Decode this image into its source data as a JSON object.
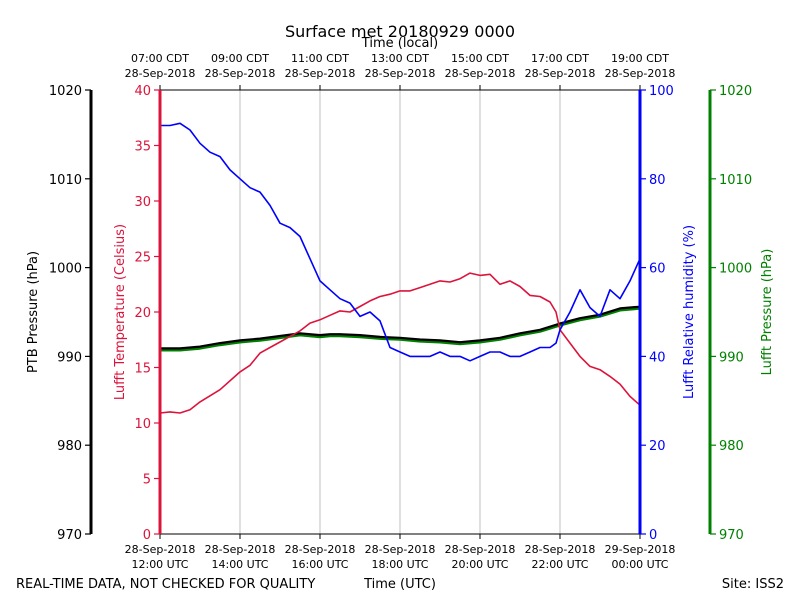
{
  "chart_data": {
    "type": "line",
    "title": "Surface met 20180929 0000",
    "top_axis_title": "Time (local)",
    "x_label": "Time (UTC)",
    "footer_left": "REAL-TIME DATA, NOT CHECKED FOR QUALITY",
    "footer_right": "Site: ISS2",
    "x_range_hours": [
      12,
      24
    ],
    "x_tick_hours": [
      12,
      14,
      16,
      18,
      20,
      22,
      24
    ],
    "bottom_ticks": [
      {
        "date": "28-Sep-2018",
        "time": "12:00 UTC"
      },
      {
        "date": "28-Sep-2018",
        "time": "14:00 UTC"
      },
      {
        "date": "28-Sep-2018",
        "time": "16:00 UTC"
      },
      {
        "date": "28-Sep-2018",
        "time": "18:00 UTC"
      },
      {
        "date": "28-Sep-2018",
        "time": "20:00 UTC"
      },
      {
        "date": "28-Sep-2018",
        "time": "22:00 UTC"
      },
      {
        "date": "29-Sep-2018",
        "time": "00:00 UTC"
      }
    ],
    "top_ticks": [
      {
        "time": "07:00 CDT",
        "date": "28-Sep-2018"
      },
      {
        "time": "09:00 CDT",
        "date": "28-Sep-2018"
      },
      {
        "time": "11:00 CDT",
        "date": "28-Sep-2018"
      },
      {
        "time": "13:00 CDT",
        "date": "28-Sep-2018"
      },
      {
        "time": "15:00 CDT",
        "date": "28-Sep-2018"
      },
      {
        "time": "17:00 CDT",
        "date": "28-Sep-2018"
      },
      {
        "time": "19:00 CDT",
        "date": "28-Sep-2018"
      }
    ],
    "axes": {
      "ptb": {
        "label": "PTB Pressure (hPa)",
        "range": [
          970,
          1020
        ],
        "ticks": [
          970,
          980,
          990,
          1000,
          1010,
          1020
        ],
        "color": "#000000"
      },
      "temp": {
        "label": "Lufft Temperature (Celsius)",
        "range": [
          0,
          40
        ],
        "ticks": [
          0,
          5,
          10,
          15,
          20,
          25,
          30,
          35,
          40
        ],
        "color": "#dc143c"
      },
      "rh": {
        "label": "Lufft Relative humidity (%)",
        "range": [
          0,
          100
        ],
        "ticks": [
          0,
          20,
          40,
          60,
          80,
          100
        ],
        "color": "#0000ff"
      },
      "lufft_p": {
        "label": "Lufft Pressure (hPa)",
        "range": [
          970,
          1020
        ],
        "ticks": [
          970,
          980,
          990,
          1000,
          1010,
          1020
        ],
        "color": "#008000"
      }
    },
    "series": [
      {
        "name": "Lufft Pressure (hPa)",
        "axis": "lufft_p",
        "color": "#008000",
        "points": [
          [
            12,
            990.7
          ],
          [
            12.5,
            990.7
          ],
          [
            13,
            990.9
          ],
          [
            13.5,
            991.3
          ],
          [
            14,
            991.6
          ],
          [
            14.5,
            991.8
          ],
          [
            15,
            992.1
          ],
          [
            15.5,
            992.4
          ],
          [
            16,
            992.2
          ],
          [
            16.25,
            992.3
          ],
          [
            16.5,
            992.3
          ],
          [
            17,
            992.2
          ],
          [
            17.5,
            992.0
          ],
          [
            18,
            991.9
          ],
          [
            18.5,
            991.7
          ],
          [
            19,
            991.6
          ],
          [
            19.5,
            991.4
          ],
          [
            20,
            991.6
          ],
          [
            20.5,
            991.9
          ],
          [
            21,
            992.4
          ],
          [
            21.5,
            992.8
          ],
          [
            22,
            993.5
          ],
          [
            22.5,
            994.1
          ],
          [
            23,
            994.5
          ],
          [
            23.5,
            995.2
          ],
          [
            24,
            995.4
          ]
        ]
      },
      {
        "name": "PTB Pressure (hPa)",
        "axis": "ptb",
        "color": "#000000",
        "points": [
          [
            12,
            990.9
          ],
          [
            12.5,
            990.9
          ],
          [
            13,
            991.1
          ],
          [
            13.5,
            991.5
          ],
          [
            14,
            991.8
          ],
          [
            14.5,
            992.0
          ],
          [
            15,
            992.3
          ],
          [
            15.5,
            992.6
          ],
          [
            16,
            992.4
          ],
          [
            16.25,
            992.5
          ],
          [
            16.5,
            992.5
          ],
          [
            17,
            992.4
          ],
          [
            17.5,
            992.2
          ],
          [
            18,
            992.1
          ],
          [
            18.5,
            991.9
          ],
          [
            19,
            991.8
          ],
          [
            19.5,
            991.6
          ],
          [
            20,
            991.8
          ],
          [
            20.5,
            992.1
          ],
          [
            21,
            992.6
          ],
          [
            21.5,
            993.0
          ],
          [
            22,
            993.7
          ],
          [
            22.5,
            994.3
          ],
          [
            23,
            994.7
          ],
          [
            23.5,
            995.4
          ],
          [
            24,
            995.6
          ]
        ]
      },
      {
        "name": "Lufft Temperature (Celsius)",
        "axis": "temp",
        "color": "#dc143c",
        "points": [
          [
            12,
            10.9
          ],
          [
            12.25,
            11.0
          ],
          [
            12.5,
            10.9
          ],
          [
            12.75,
            11.2
          ],
          [
            13,
            11.9
          ],
          [
            13.5,
            13.0
          ],
          [
            14,
            14.6
          ],
          [
            14.25,
            15.2
          ],
          [
            14.5,
            16.3
          ],
          [
            14.75,
            16.8
          ],
          [
            15,
            17.3
          ],
          [
            15.25,
            17.8
          ],
          [
            15.5,
            18.3
          ],
          [
            15.75,
            19.0
          ],
          [
            16,
            19.3
          ],
          [
            16.25,
            19.7
          ],
          [
            16.5,
            20.1
          ],
          [
            16.75,
            20.0
          ],
          [
            17,
            20.5
          ],
          [
            17.25,
            21.0
          ],
          [
            17.5,
            21.4
          ],
          [
            17.75,
            21.6
          ],
          [
            18,
            21.9
          ],
          [
            18.25,
            21.9
          ],
          [
            18.5,
            22.2
          ],
          [
            18.75,
            22.5
          ],
          [
            19,
            22.8
          ],
          [
            19.25,
            22.7
          ],
          [
            19.5,
            23.0
          ],
          [
            19.75,
            23.5
          ],
          [
            20,
            23.3
          ],
          [
            20.25,
            23.4
          ],
          [
            20.5,
            22.5
          ],
          [
            20.75,
            22.8
          ],
          [
            21,
            22.3
          ],
          [
            21.25,
            21.5
          ],
          [
            21.5,
            21.4
          ],
          [
            21.75,
            20.9
          ],
          [
            21.9,
            20.0
          ],
          [
            22,
            18.4
          ],
          [
            22.25,
            17.2
          ],
          [
            22.5,
            16.0
          ],
          [
            22.75,
            15.1
          ],
          [
            23,
            14.8
          ],
          [
            23.25,
            14.2
          ],
          [
            23.5,
            13.5
          ],
          [
            23.75,
            12.4
          ],
          [
            24,
            11.6
          ]
        ]
      },
      {
        "name": "Lufft Relative humidity (%)",
        "axis": "rh",
        "color": "#0000ff",
        "points": [
          [
            12,
            92
          ],
          [
            12.25,
            92
          ],
          [
            12.5,
            92.5
          ],
          [
            12.75,
            91
          ],
          [
            13,
            88
          ],
          [
            13.25,
            86
          ],
          [
            13.5,
            85
          ],
          [
            13.75,
            82
          ],
          [
            14,
            80
          ],
          [
            14.25,
            78
          ],
          [
            14.5,
            77
          ],
          [
            14.75,
            74
          ],
          [
            15,
            70
          ],
          [
            15.25,
            69
          ],
          [
            15.5,
            67
          ],
          [
            15.75,
            62
          ],
          [
            16,
            57
          ],
          [
            16.25,
            55
          ],
          [
            16.5,
            53
          ],
          [
            16.75,
            52
          ],
          [
            17,
            49
          ],
          [
            17.25,
            50
          ],
          [
            17.5,
            48
          ],
          [
            17.75,
            42
          ],
          [
            18,
            41
          ],
          [
            18.25,
            40
          ],
          [
            18.5,
            40
          ],
          [
            18.75,
            40
          ],
          [
            19,
            41
          ],
          [
            19.25,
            40
          ],
          [
            19.5,
            40
          ],
          [
            19.75,
            39
          ],
          [
            20,
            40
          ],
          [
            20.25,
            41
          ],
          [
            20.5,
            41
          ],
          [
            20.75,
            40
          ],
          [
            21,
            40
          ],
          [
            21.25,
            41
          ],
          [
            21.5,
            42
          ],
          [
            21.75,
            42
          ],
          [
            21.9,
            43
          ],
          [
            22,
            46
          ],
          [
            22.25,
            50
          ],
          [
            22.5,
            55
          ],
          [
            22.75,
            51
          ],
          [
            23,
            49
          ],
          [
            23.25,
            55
          ],
          [
            23.5,
            53
          ],
          [
            23.75,
            57
          ],
          [
            24,
            62
          ]
        ]
      }
    ]
  }
}
